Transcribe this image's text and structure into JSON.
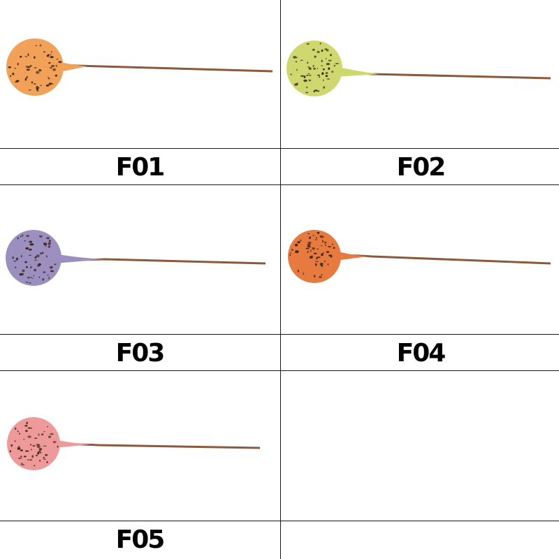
{
  "items": [
    {
      "code": "F01",
      "ball_color": "#f2a258",
      "stem_color": "#8a5a3a"
    },
    {
      "code": "F02",
      "ball_color": "#cfd86e",
      "stem_color": "#8a5a3a"
    },
    {
      "code": "F03",
      "ball_color": "#9b8fbf",
      "stem_color": "#8a5a3a"
    },
    {
      "code": "F04",
      "ball_color": "#e77a3f",
      "stem_color": "#8a5a3a"
    },
    {
      "code": "F05",
      "ball_color": "#ee9a9a",
      "stem_color": "#8a5a3a"
    }
  ],
  "speckle_color": "#3b2418"
}
